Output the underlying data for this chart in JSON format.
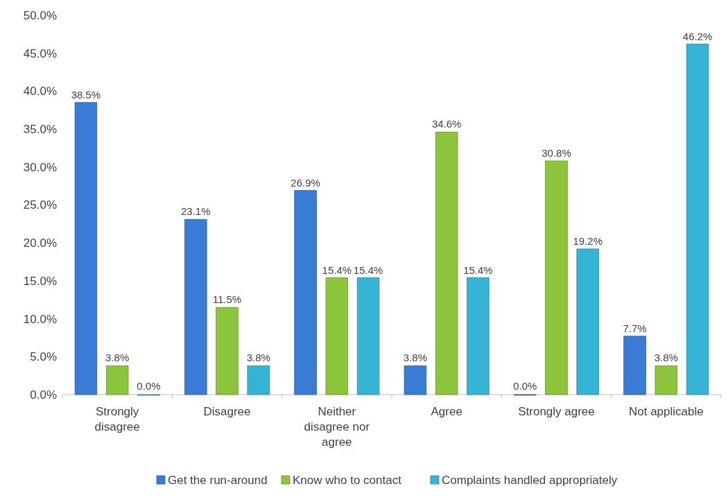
{
  "chart_data": {
    "type": "bar",
    "categories": [
      "Strongly disagree",
      "Disagree",
      "Neither disagree nor agree",
      "Agree",
      "Strongly agree",
      "Not applicable"
    ],
    "series": [
      {
        "name": "Get the run-around",
        "color": "#3a7bd5",
        "values": [
          38.5,
          23.1,
          26.9,
          3.8,
          0.0,
          7.7
        ],
        "value_labels": [
          "38.5%",
          "23.1%",
          "26.9%",
          "3.8%",
          "0.0%",
          "7.7%"
        ]
      },
      {
        "name": "Know who to contact",
        "color": "#8cc43c",
        "values": [
          3.8,
          11.5,
          15.4,
          34.6,
          30.8,
          3.8
        ],
        "value_labels": [
          "3.8%",
          "11.5%",
          "15.4%",
          "34.6%",
          "30.8%",
          "3.8%"
        ]
      },
      {
        "name": "Complaints handled appropriately",
        "color": "#36b4d6",
        "values": [
          0.0,
          3.8,
          15.4,
          15.4,
          19.2,
          46.2
        ],
        "value_labels": [
          "0.0%",
          "3.8%",
          "15.4%",
          "15.4%",
          "19.2%",
          "46.2%"
        ]
      }
    ],
    "ylim": [
      0,
      50
    ],
    "yticks": [
      {
        "value": 0,
        "label": "0.0%"
      },
      {
        "value": 5,
        "label": "5.0%"
      },
      {
        "value": 10,
        "label": "10.0%"
      },
      {
        "value": 15,
        "label": "15.0%"
      },
      {
        "value": 20,
        "label": "20.0%"
      },
      {
        "value": 25,
        "label": "25.0%"
      },
      {
        "value": 30,
        "label": "30.0%"
      },
      {
        "value": 35,
        "label": "35.0%"
      },
      {
        "value": 40,
        "label": "40.0%"
      },
      {
        "value": 45,
        "label": "45.0%"
      },
      {
        "value": 50,
        "label": "50.0%"
      }
    ],
    "legend": "bottom"
  }
}
